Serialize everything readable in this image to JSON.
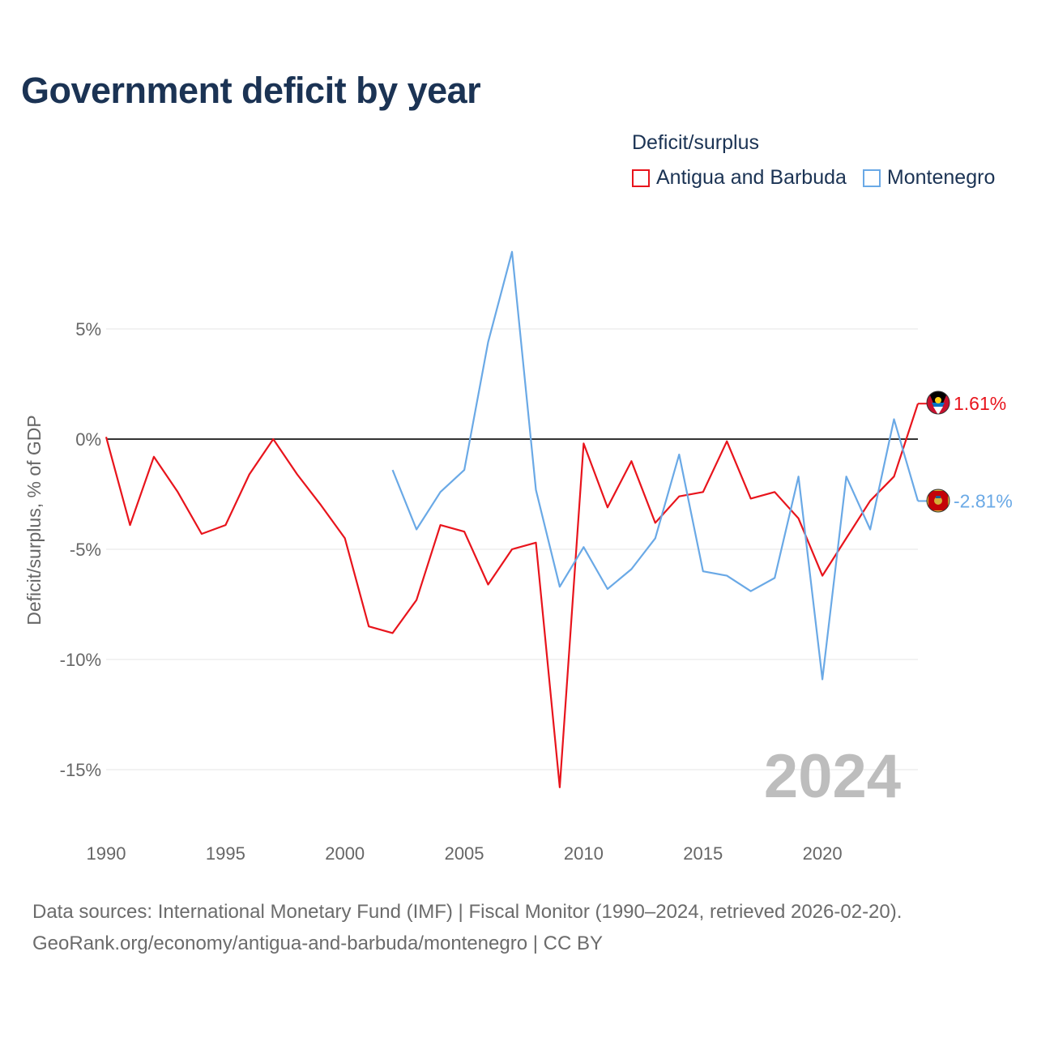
{
  "title": "Government deficit by year",
  "legend": {
    "title": "Deficit/surplus",
    "items": [
      {
        "name": "Antigua and Barbuda",
        "color": "#e8141c"
      },
      {
        "name": "Montenegro",
        "color": "#6aa9e6"
      }
    ]
  },
  "year_watermark": "2024",
  "footer": {
    "line1": "Data sources: International Monetary Fund (IMF) | Fiscal Monitor (1990–2024, retrieved 2026-02-20).",
    "line2": "GeoRank.org/economy/antigua-and-barbuda/montenegro | CC BY"
  },
  "chart_data": {
    "type": "line",
    "title": "Government deficit by year",
    "ylabel": "Deficit/surplus, % of GDP",
    "xlabel": "",
    "xlim": [
      1990,
      2024
    ],
    "ylim": [
      -17,
      10
    ],
    "x_ticks": [
      1990,
      1995,
      2000,
      2005,
      2010,
      2015,
      2020
    ],
    "x_tick_labels": [
      "1990",
      "1995",
      "2000",
      "2005",
      "2010",
      "2015",
      "2020"
    ],
    "y_ticks": [
      5,
      0,
      -5,
      -10,
      -15
    ],
    "y_tick_labels": [
      "5%",
      "0%",
      "-5%",
      "-10%",
      "-15%"
    ],
    "zero_line": true,
    "series": [
      {
        "name": "Antigua and Barbuda",
        "color": "#e8141c",
        "end_label": "1.61%",
        "x": [
          1990,
          1991,
          1992,
          1993,
          1994,
          1995,
          1996,
          1997,
          1998,
          1999,
          2000,
          2001,
          2002,
          2003,
          2004,
          2005,
          2006,
          2007,
          2008,
          2009,
          2010,
          2011,
          2012,
          2013,
          2014,
          2015,
          2016,
          2017,
          2018,
          2019,
          2020,
          2021,
          2022,
          2023,
          2024
        ],
        "y": [
          0.1,
          -3.9,
          -0.8,
          -2.4,
          -4.3,
          -3.9,
          -1.6,
          0.0,
          -1.6,
          -3.0,
          -4.5,
          -8.5,
          -8.8,
          -7.3,
          -3.9,
          -4.2,
          -6.6,
          -5.0,
          -4.7,
          -15.8,
          -0.2,
          -3.1,
          -1.0,
          -3.8,
          -2.6,
          -2.4,
          -0.1,
          -2.7,
          -2.4,
          -3.6,
          -6.2,
          -4.5,
          -2.8,
          -1.7,
          1.61
        ]
      },
      {
        "name": "Montenegro",
        "color": "#6aa9e6",
        "end_label": "-2.81%",
        "x": [
          2002,
          2003,
          2004,
          2005,
          2006,
          2007,
          2008,
          2009,
          2010,
          2011,
          2012,
          2013,
          2014,
          2015,
          2016,
          2017,
          2018,
          2019,
          2020,
          2021,
          2022,
          2023,
          2024
        ],
        "y": [
          -1.4,
          -4.1,
          -2.4,
          -1.4,
          4.4,
          8.5,
          -2.3,
          -6.7,
          -4.9,
          -6.8,
          -5.9,
          -4.5,
          -0.7,
          -6.0,
          -6.2,
          -6.9,
          -6.3,
          -1.7,
          -10.9,
          -1.7,
          -4.1,
          0.9,
          -2.81
        ]
      }
    ]
  }
}
